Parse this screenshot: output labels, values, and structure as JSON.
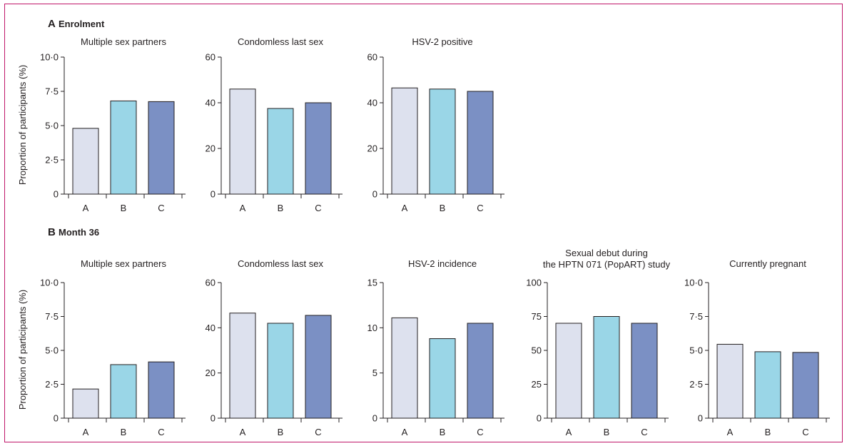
{
  "colors": {
    "A": "#dde1ee",
    "B": "#9ad6e7",
    "C": "#7b90c4",
    "stroke": "#231f20",
    "frame": "#c0166a"
  },
  "panels": {
    "A": {
      "letter": "A",
      "name": "Enrolment"
    },
    "B": {
      "letter": "B",
      "name": "Month 36"
    }
  },
  "ylabel": "Proportion of participants (%)",
  "chart_data": [
    {
      "type": "bar",
      "panel": "A",
      "title": [
        "Multiple sex partners"
      ],
      "categories": [
        "A",
        "B",
        "C"
      ],
      "values": [
        4.8,
        6.8,
        6.75
      ],
      "ylim": [
        0,
        10
      ],
      "ticks": [
        "0",
        "2·5",
        "5·0",
        "7·5",
        "10·0"
      ]
    },
    {
      "type": "bar",
      "panel": "A",
      "title": [
        "Condomless last sex"
      ],
      "categories": [
        "A",
        "B",
        "C"
      ],
      "values": [
        46,
        37.5,
        40
      ],
      "ylim": [
        0,
        60
      ],
      "ticks": [
        "0",
        "20",
        "40",
        "60"
      ]
    },
    {
      "type": "bar",
      "panel": "A",
      "title": [
        "HSV-2 positive"
      ],
      "categories": [
        "A",
        "B",
        "C"
      ],
      "values": [
        46.5,
        46,
        45
      ],
      "ylim": [
        0,
        60
      ],
      "ticks": [
        "0",
        "20",
        "40",
        "60"
      ]
    },
    {
      "type": "bar",
      "panel": "B",
      "title": [
        "Multiple sex partners"
      ],
      "categories": [
        "A",
        "B",
        "C"
      ],
      "values": [
        2.15,
        3.95,
        4.15
      ],
      "ylim": [
        0,
        10
      ],
      "ticks": [
        "0",
        "2·5",
        "5·0",
        "7·5",
        "10·0"
      ]
    },
    {
      "type": "bar",
      "panel": "B",
      "title": [
        "Condomless last sex"
      ],
      "categories": [
        "A",
        "B",
        "C"
      ],
      "values": [
        46.5,
        42,
        45.5
      ],
      "ylim": [
        0,
        60
      ],
      "ticks": [
        "0",
        "20",
        "40",
        "60"
      ]
    },
    {
      "type": "bar",
      "panel": "B",
      "title": [
        "HSV-2 incidence"
      ],
      "categories": [
        "A",
        "B",
        "C"
      ],
      "values": [
        11.1,
        8.8,
        10.5
      ],
      "ylim": [
        0,
        15
      ],
      "ticks": [
        "0",
        "5",
        "10",
        "15"
      ]
    },
    {
      "type": "bar",
      "panel": "B",
      "title": [
        "Sexual debut during",
        "the HPTN 071 (PopART) study"
      ],
      "categories": [
        "A",
        "B",
        "C"
      ],
      "values": [
        70,
        75,
        70
      ],
      "ylim": [
        0,
        100
      ],
      "ticks": [
        "0",
        "25",
        "50",
        "75",
        "100"
      ]
    },
    {
      "type": "bar",
      "panel": "B",
      "title": [
        "Currently pregnant"
      ],
      "categories": [
        "A",
        "B",
        "C"
      ],
      "values": [
        5.45,
        4.9,
        4.85
      ],
      "ylim": [
        0,
        10
      ],
      "ticks": [
        "0",
        "2·5",
        "5·0",
        "7·5",
        "10·0"
      ]
    }
  ]
}
